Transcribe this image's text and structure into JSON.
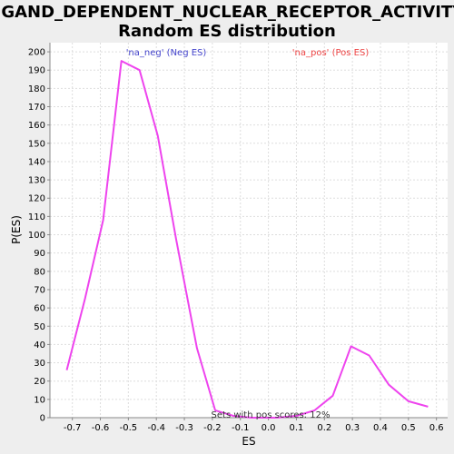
{
  "chart_data": {
    "type": "line",
    "title_line1": "LIGAND_DEPENDENT_NUCLEAR_RECEPTOR_ACTIVITY:",
    "title_line2": "Random ES distribution",
    "xlabel": "ES",
    "ylabel": "P(ES)",
    "xlim": [
      -0.78,
      0.64
    ],
    "ylim": [
      0,
      205
    ],
    "xticks": [
      -0.7,
      -0.6,
      -0.5,
      -0.4,
      -0.3,
      -0.2,
      -0.1,
      0.0,
      0.1,
      0.2,
      0.3,
      0.4,
      0.5,
      0.6
    ],
    "xtick_labels": [
      "-0.7",
      "-0.6",
      "-0.5",
      "-0.4",
      "-0.3",
      "-0.2",
      "-0.1",
      "0.0",
      "0.1",
      "0.2",
      "0.3",
      "0.4",
      "0.5",
      "0.6"
    ],
    "yticks": [
      0,
      10,
      20,
      30,
      40,
      50,
      60,
      70,
      80,
      90,
      100,
      110,
      120,
      130,
      140,
      150,
      160,
      170,
      180,
      190,
      200
    ],
    "grid": true,
    "series": [
      {
        "color": "#ee44ee",
        "x": [
          -0.72,
          -0.655,
          -0.59,
          -0.525,
          -0.46,
          -0.395,
          -0.33,
          -0.255,
          -0.19,
          -0.125,
          -0.06,
          0.0,
          0.03,
          0.1,
          0.165,
          0.23,
          0.295,
          0.36,
          0.43,
          0.5,
          0.57
        ],
        "y": [
          26,
          65,
          108,
          195,
          190,
          154,
          98,
          38,
          4,
          1,
          0,
          0,
          0,
          1,
          4,
          12,
          39,
          34,
          18,
          9,
          6
        ]
      }
    ],
    "legend_neg": "'na_neg' (Neg ES)",
    "legend_pos": "'na_pos' (Pos ES)",
    "legend_neg_color": "#4444cc",
    "legend_pos_color": "#ee4444",
    "annotation": "Sets with pos scores: 12%"
  }
}
